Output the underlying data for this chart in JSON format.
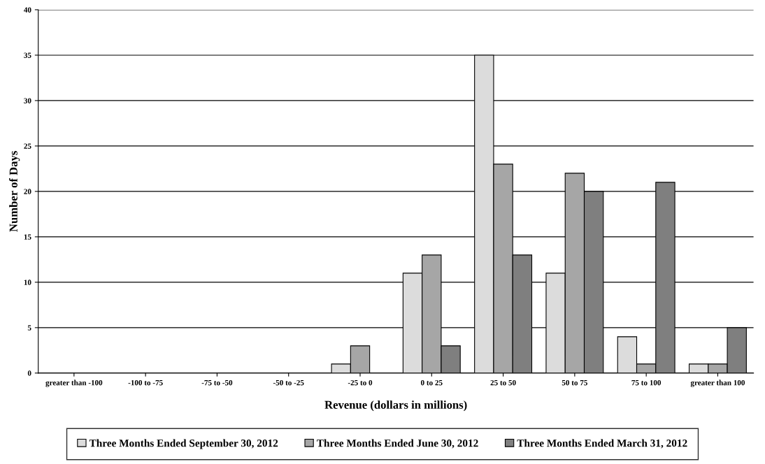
{
  "chart_data": {
    "type": "bar",
    "xlabel": "Revenue (dollars in millions)",
    "ylabel": "Number of Days",
    "categories": [
      "greater than -100",
      "-100 to -75",
      "-75 to -50",
      "-50 to -25",
      "-25 to 0",
      "0 to 25",
      "25 to 50",
      "50 to 75",
      "75 to 100",
      "greater than 100"
    ],
    "series": [
      {
        "name": "Three Months Ended September 30, 2012",
        "color": "#dcdcdc",
        "values": [
          0,
          0,
          0,
          0,
          1,
          11,
          35,
          11,
          4,
          1
        ]
      },
      {
        "name": "Three Months Ended June 30, 2012",
        "color": "#a6a6a6",
        "values": [
          0,
          0,
          0,
          0,
          3,
          13,
          23,
          22,
          1,
          1
        ]
      },
      {
        "name": "Three Months Ended March 31, 2012",
        "color": "#7f7f7f",
        "values": [
          0,
          0,
          0,
          0,
          0,
          3,
          13,
          20,
          21,
          5
        ]
      }
    ],
    "ylim": [
      0,
      40
    ],
    "yticks": [
      0,
      5,
      10,
      15,
      20,
      25,
      30,
      35,
      40
    ],
    "grid": "y",
    "legend": "bottom"
  }
}
